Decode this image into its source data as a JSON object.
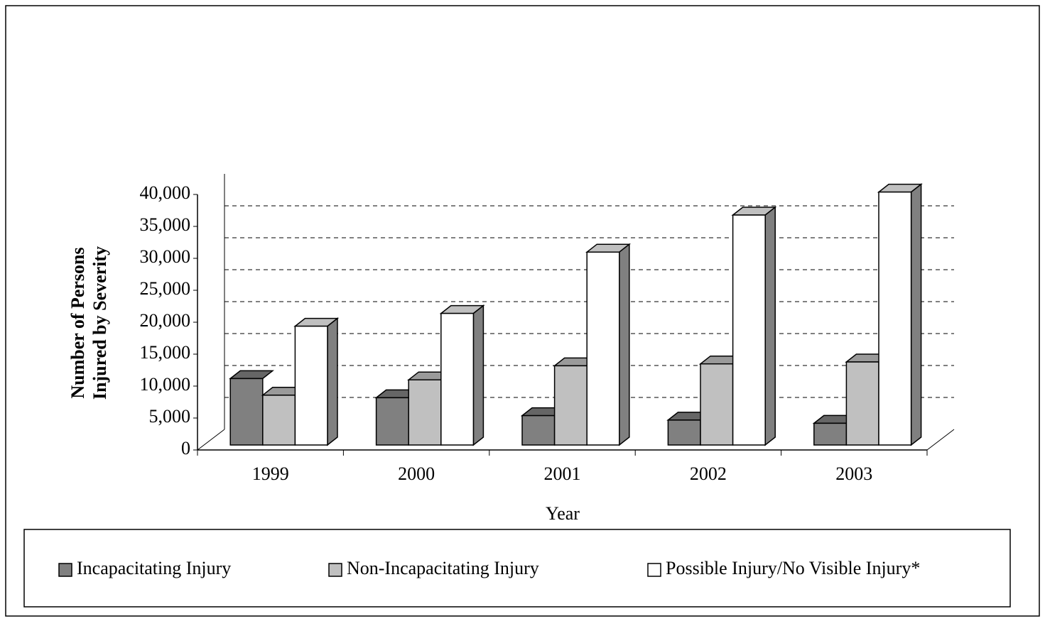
{
  "chart_data": {
    "type": "bar3d",
    "y_label": [
      "Number of Persons",
      "Injured by Severity"
    ],
    "x_label": "Year",
    "categories": [
      "1999",
      "2000",
      "2001",
      "2002",
      "2003"
    ],
    "series": [
      {
        "name": "Incapacitating Injury",
        "color": "#808080",
        "values": [
          10400,
          7400,
          4600,
          3900,
          3400
        ]
      },
      {
        "name": "Non-Incapacitating Injury",
        "color": "#c0c0c0",
        "values": [
          7800,
          10200,
          12400,
          12700,
          13000
        ]
      },
      {
        "name": "Possible Injury/No Visible Injury*",
        "color": "#ffffff",
        "values": [
          18600,
          20600,
          30200,
          36000,
          39600
        ]
      }
    ],
    "ylim": [
      0,
      40000
    ],
    "yticks": [
      0,
      {
        "value": 5000,
        "label": "5,000"
      },
      {
        "value": 10000,
        "label": "10,000"
      },
      {
        "value": 15000,
        "label": "15,000"
      },
      {
        "value": 20000,
        "label": "20,000"
      },
      {
        "value": 25000,
        "label": "25,000"
      },
      {
        "value": 30000,
        "label": "30,000"
      },
      {
        "value": 35000,
        "label": "35,000"
      },
      {
        "value": 40000,
        "label": "40,000"
      }
    ],
    "grid": true,
    "legend": "bottom"
  }
}
